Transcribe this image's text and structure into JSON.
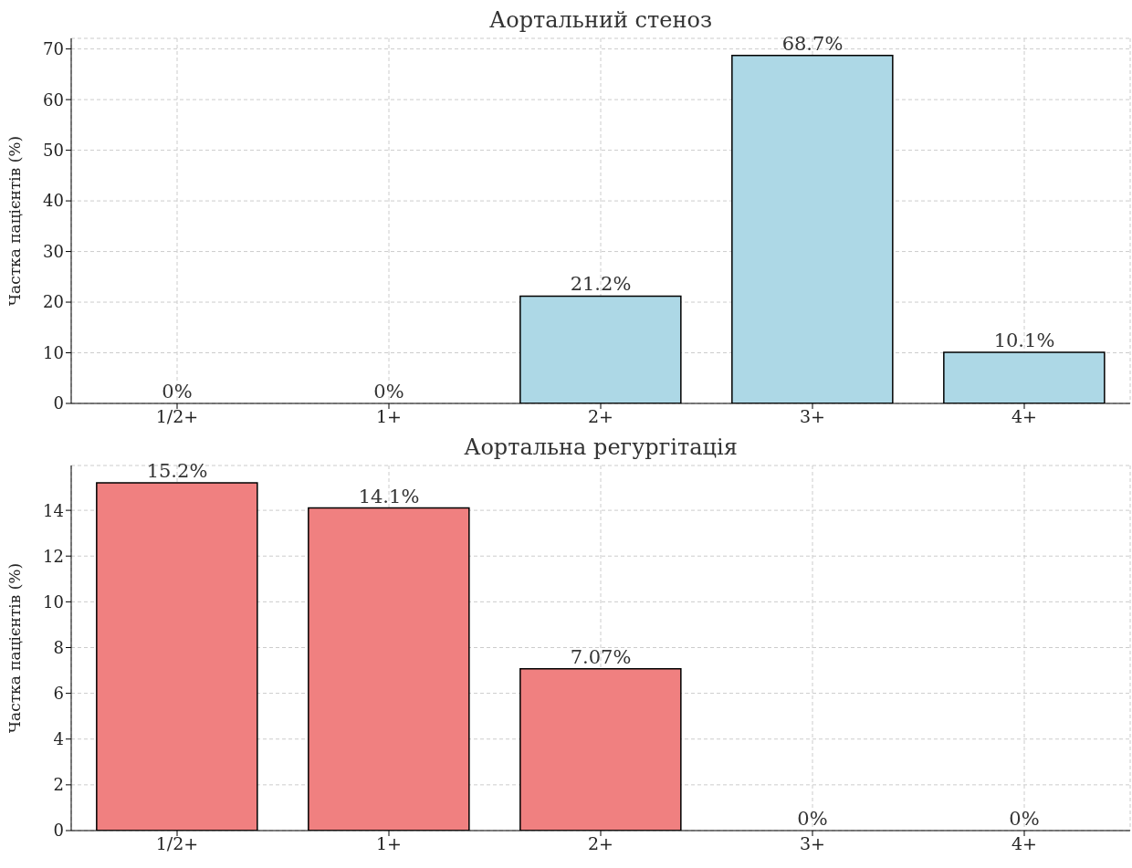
{
  "chart_data": [
    {
      "type": "bar",
      "title": "Аортальний стеноз",
      "ylabel": "Частка пацієнтів (%)",
      "categories": [
        "1/2+",
        "1+",
        "2+",
        "3+",
        "4+"
      ],
      "values": [
        0,
        0,
        21.2,
        68.7,
        10.1
      ],
      "value_labels": [
        "0%",
        "0%",
        "21.2%",
        "68.7%",
        "10.1%"
      ],
      "color": "#add8e6",
      "ylim": [
        0,
        72.1
      ],
      "yticks": [
        0,
        10,
        20,
        30,
        40,
        50,
        60,
        70
      ],
      "grid": true
    },
    {
      "type": "bar",
      "title": "Аортальна регургітація",
      "ylabel": "Частка пацієнтів (%)",
      "categories": [
        "1/2+",
        "1+",
        "2+",
        "3+",
        "4+"
      ],
      "values": [
        15.2,
        14.1,
        7.07,
        0,
        0
      ],
      "value_labels": [
        "15.2%",
        "14.1%",
        "7.07%",
        "0%",
        "0%"
      ],
      "color": "#f08080",
      "ylim": [
        0,
        15.96
      ],
      "yticks": [
        0,
        2,
        4,
        6,
        8,
        10,
        12,
        14
      ],
      "grid": true
    }
  ]
}
